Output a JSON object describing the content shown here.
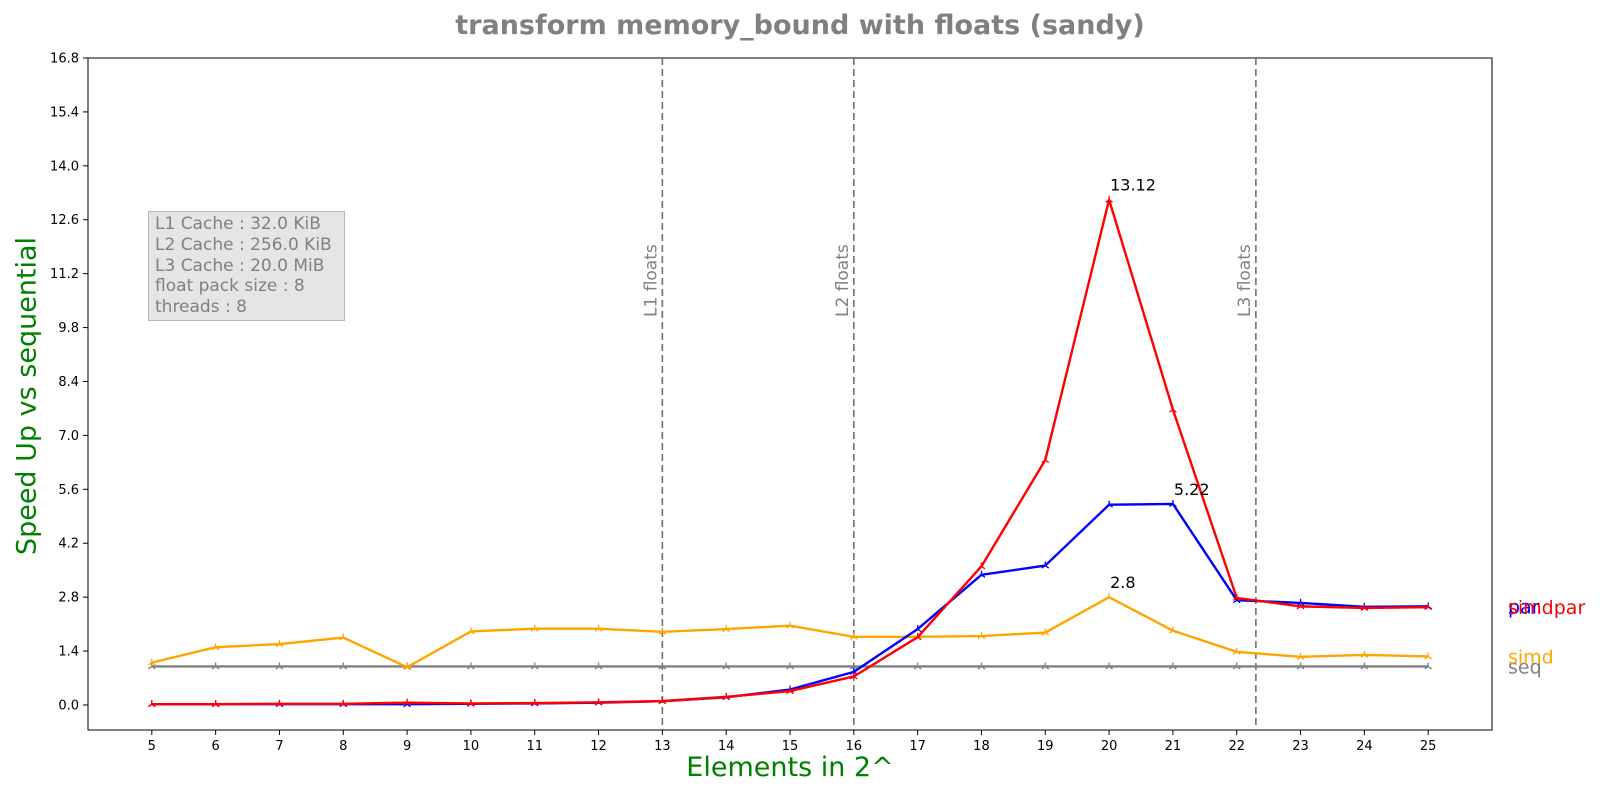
{
  "chart_data": {
    "type": "line",
    "title": "transform memory_bound with floats  (sandy)",
    "xlabel": "Elements in 2^",
    "ylabel": "Speed Up vs sequential",
    "x": [
      5,
      6,
      7,
      8,
      9,
      10,
      11,
      12,
      13,
      14,
      15,
      16,
      17,
      18,
      19,
      20,
      21,
      22,
      23,
      24,
      25
    ],
    "xlim": [
      4,
      26
    ],
    "ylim": [
      -0.65,
      16.8
    ],
    "yticks": [
      0.0,
      1.4,
      2.8,
      4.2,
      5.6,
      7.0,
      8.4,
      9.8,
      11.2,
      12.6,
      14.0,
      15.4,
      16.8
    ],
    "grid": false,
    "series": [
      {
        "name": "seq",
        "color": "#808080",
        "values": [
          1,
          1,
          1,
          1,
          1,
          1,
          1,
          1,
          1,
          1,
          1,
          1,
          1,
          1,
          1,
          1,
          1,
          1,
          1,
          1,
          1
        ]
      },
      {
        "name": "simd",
        "color": "#ffa500",
        "values": [
          1.1,
          1.5,
          1.58,
          1.75,
          0.98,
          1.91,
          1.98,
          1.98,
          1.9,
          1.97,
          2.06,
          1.77,
          1.77,
          1.79,
          1.88,
          2.8,
          1.93,
          1.38,
          1.25,
          1.3,
          1.26
        ]
      },
      {
        "name": "par",
        "color": "#0000ff",
        "values": [
          0.02,
          0.02,
          0.02,
          0.02,
          0.02,
          0.03,
          0.04,
          0.06,
          0.1,
          0.2,
          0.4,
          0.86,
          1.97,
          3.38,
          3.62,
          5.2,
          5.22,
          2.72,
          2.65,
          2.55,
          2.56
        ]
      },
      {
        "name": "simdpar",
        "color": "#ff0000",
        "values": [
          0.02,
          0.02,
          0.03,
          0.03,
          0.06,
          0.04,
          0.05,
          0.07,
          0.1,
          0.21,
          0.36,
          0.74,
          1.76,
          3.6,
          6.36,
          13.12,
          7.67,
          2.78,
          2.56,
          2.52,
          2.54
        ]
      }
    ],
    "annotations": [
      {
        "x": 20,
        "y": 13.12,
        "text": "13.12"
      },
      {
        "x": 21,
        "y": 5.22,
        "text": "5.22"
      },
      {
        "x": 20,
        "y": 2.8,
        "text": "2.8"
      }
    ],
    "vlines": [
      {
        "x": 13.0,
        "text": "L1 floats"
      },
      {
        "x": 16.0,
        "text": "L2 floats"
      },
      {
        "x": 22.3,
        "text": "L3 floats"
      }
    ],
    "end_labels": [
      {
        "series": "seq",
        "y": 1.0
      },
      {
        "series": "simd",
        "y": 1.26
      },
      {
        "series": "par",
        "y": 2.56
      },
      {
        "series": "simdpar",
        "y": 2.54
      }
    ],
    "info_box": [
      "L1 Cache : 32.0 KiB",
      "L2 Cache : 256.0 KiB",
      "L3 Cache : 20.0 MiB",
      "float pack size : 8",
      "threads : 8"
    ]
  }
}
